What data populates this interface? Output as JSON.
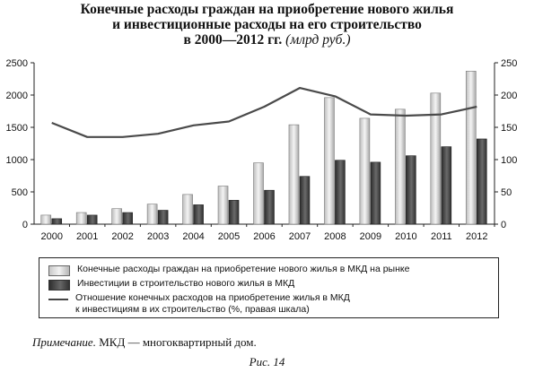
{
  "title": {
    "line1": "Конечные расходы граждан на приобретение нового жилья",
    "line2": "и инвестиционные расходы на его строительство",
    "line3_main": "в 2000—2012 гг.",
    "line3_unit": "(млрд руб.)"
  },
  "chart_data": {
    "type": "bar",
    "categories": [
      "2000",
      "2001",
      "2002",
      "2003",
      "2004",
      "2005",
      "2006",
      "2007",
      "2008",
      "2009",
      "2010",
      "2011",
      "2012"
    ],
    "series": [
      {
        "name": "Конечные расходы граждан на приобретение нового жилья в МКД на рынке",
        "type": "bar",
        "axis": "left",
        "color": "#d9d9d9",
        "values": [
          140,
          180,
          240,
          310,
          460,
          590,
          950,
          1540,
          1960,
          1640,
          1780,
          2030,
          2370
        ]
      },
      {
        "name": "Инвестиции  в строительство нового жилья в МКД",
        "type": "bar",
        "axis": "left",
        "color": "#444444",
        "values": [
          85,
          140,
          180,
          215,
          300,
          370,
          525,
          740,
          990,
          960,
          1060,
          1200,
          1320
        ]
      },
      {
        "name": "Отношение конечных расходов на приобретение жилья в МКД к инвестициям в их строительство (%, правая шкала)",
        "type": "line",
        "axis": "right",
        "color": "#444444",
        "values": [
          157,
          135,
          135,
          140,
          153,
          159,
          182,
          211,
          198,
          170,
          168,
          170,
          182
        ]
      }
    ],
    "y_left": {
      "min": 0,
      "max": 2500,
      "ticks": [
        0,
        500,
        1000,
        1500,
        2000,
        2500
      ]
    },
    "y_right": {
      "min": 0,
      "max": 250,
      "ticks": [
        0,
        50,
        100,
        150,
        200,
        250
      ]
    },
    "legend_position": "bottom",
    "grid": false
  },
  "legend": {
    "item1": "Конечные расходы граждан на приобретение нового жилья в МКД на рынке",
    "item2": "Инвестиции  в строительство нового жилья в МКД",
    "item3_line1": "Отношение конечных расходов на приобретение жилья в МКД",
    "item3_line2": "к инвестициям в их строительство (%, правая шкала)"
  },
  "note": {
    "label": "Примечание.",
    "text": "МКД — многоквартирный дом."
  },
  "caption": "Рис. 14"
}
